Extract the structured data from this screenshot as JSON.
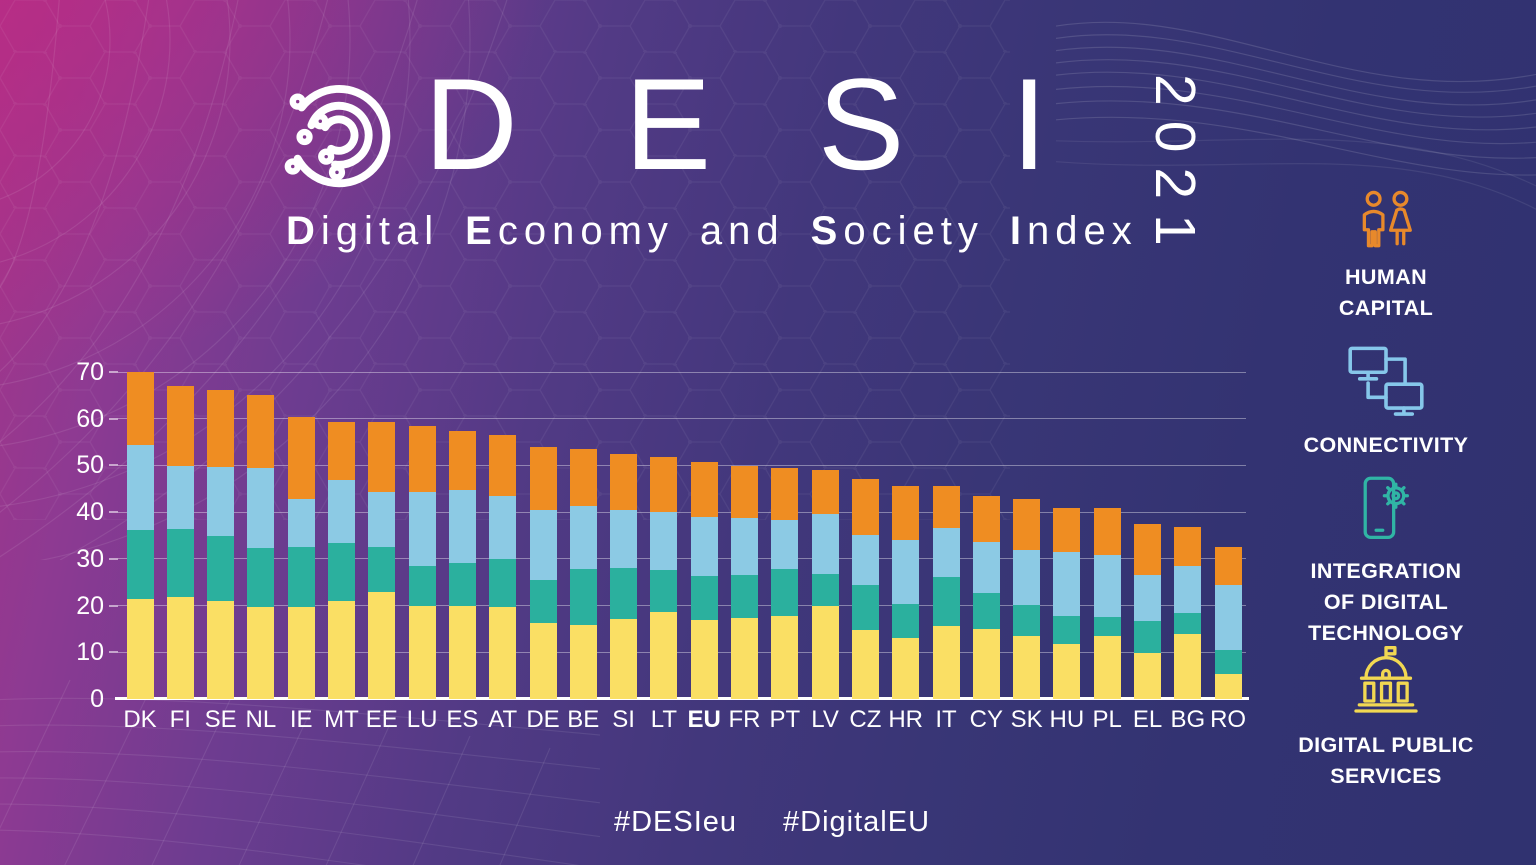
{
  "header": {
    "logo": "desi-circular-logo",
    "title": "DESI",
    "year": "2021",
    "subtitle": "Digital Economy and Society Index"
  },
  "sidebar": {
    "items": [
      {
        "icon": "human-capital-people-icon",
        "lines": [
          "HUMAN",
          "CAPITAL"
        ],
        "color": "#e8892b"
      },
      {
        "icon": "connectivity-monitors-icon",
        "lines": [
          "CONNECTIVITY"
        ],
        "color": "#86c7ea"
      },
      {
        "icon": "integration-phone-gear-icon",
        "lines": [
          "INTEGRATION",
          "OF DIGITAL",
          "TECHNOLOGY"
        ],
        "color": "#30b5a5"
      },
      {
        "icon": "digital-public-services-building-icon",
        "lines": [
          "DIGITAL PUBLIC",
          "SERVICES"
        ],
        "color": "#f2d852"
      }
    ]
  },
  "footer": {
    "hashtags": [
      "#DESIeu",
      "#DigitalEU"
    ]
  },
  "chart_data": {
    "type": "bar",
    "stacked": true,
    "title": "DESI 2021 country ranking",
    "categories": [
      "DK",
      "FI",
      "SE",
      "NL",
      "IE",
      "MT",
      "EE",
      "LU",
      "ES",
      "AT",
      "DE",
      "BE",
      "SI",
      "LT",
      "EU",
      "FR",
      "PT",
      "LV",
      "CZ",
      "HR",
      "IT",
      "CY",
      "SK",
      "HU",
      "PL",
      "EL",
      "BG",
      "RO"
    ],
    "emphasized_category": "EU",
    "ylim": [
      0,
      70
    ],
    "yticks": [
      0,
      10,
      20,
      30,
      40,
      50,
      60,
      70
    ],
    "grid": true,
    "legend_position": "right",
    "series": [
      {
        "name": "Digital Public Services",
        "color": "#fadf64",
        "values": [
          21.5,
          21.8,
          21.0,
          19.7,
          19.7,
          21.0,
          22.8,
          19.9,
          20.0,
          19.7,
          16.3,
          15.8,
          17.1,
          18.7,
          16.9,
          17.3,
          17.8,
          19.9,
          14.8,
          13.1,
          15.7,
          15.0,
          13.4,
          11.7,
          13.4,
          9.9,
          14.0,
          5.3
        ]
      },
      {
        "name": "Integration of Digital Technology",
        "color": "#2bb09e",
        "values": [
          14.6,
          14.6,
          13.9,
          12.7,
          12.9,
          12.4,
          9.7,
          8.5,
          9.2,
          10.2,
          9.2,
          12.0,
          10.9,
          9.0,
          9.5,
          9.2,
          10.0,
          6.8,
          9.6,
          7.3,
          10.4,
          7.7,
          6.8,
          6.0,
          4.2,
          6.7,
          4.5,
          5.1
        ]
      },
      {
        "name": "Connectivity",
        "color": "#8ccae4",
        "values": [
          18.3,
          13.4,
          14.8,
          17.1,
          10.2,
          13.5,
          11.9,
          16.0,
          15.5,
          13.6,
          15.0,
          13.5,
          12.5,
          12.3,
          12.5,
          12.2,
          10.6,
          12.8,
          10.8,
          13.7,
          10.5,
          11.0,
          11.7,
          13.7,
          13.3,
          9.9,
          10.0,
          14.0
        ]
      },
      {
        "name": "Human Capital",
        "color": "#ef8d22",
        "values": [
          15.7,
          17.3,
          16.4,
          15.6,
          17.5,
          12.4,
          14.8,
          14.1,
          12.7,
          13.0,
          13.4,
          12.3,
          11.9,
          11.8,
          11.8,
          11.1,
          11.1,
          9.5,
          11.9,
          11.5,
          8.9,
          9.8,
          10.9,
          9.5,
          9.9,
          10.9,
          8.3,
          8.1
        ]
      }
    ],
    "totals": [
      70.1,
      67.1,
      66.1,
      65.1,
      60.3,
      59.3,
      59.2,
      58.5,
      57.4,
      56.5,
      53.9,
      53.6,
      52.4,
      51.8,
      50.7,
      49.8,
      49.5,
      49.0,
      47.1,
      45.6,
      45.5,
      43.5,
      42.8,
      40.9,
      40.8,
      37.4,
      36.8,
      32.5
    ]
  }
}
